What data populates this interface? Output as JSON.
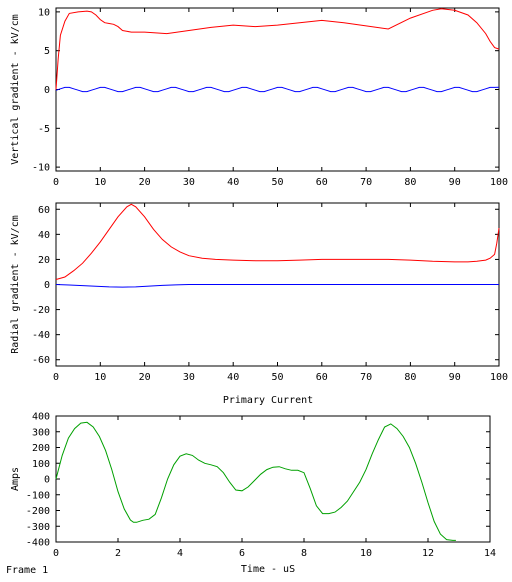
{
  "footer": {
    "frame_label": "Frame 1"
  },
  "chart_data": [
    {
      "type": "line",
      "title": "",
      "xlabel": "",
      "ylabel": "Vertical gradient - kV/cm",
      "xlim": [
        0,
        100
      ],
      "ylim": [
        -10.5,
        10.5
      ],
      "xticks": [
        0,
        10,
        20,
        30,
        40,
        50,
        60,
        70,
        80,
        90,
        100
      ],
      "yticks": [
        -10,
        -5,
        0,
        5,
        10
      ],
      "series": [
        {
          "color": "#ff0000",
          "x": [
            0,
            0.5,
            1,
            2,
            3,
            5,
            7,
            8,
            9,
            10,
            11,
            12,
            13,
            14,
            15,
            17,
            20,
            25,
            30,
            35,
            40,
            45,
            50,
            55,
            60,
            65,
            70,
            75,
            80,
            85,
            87,
            90,
            93,
            95,
            97,
            98,
            99,
            100
          ],
          "y": [
            0,
            4,
            7,
            8.8,
            9.8,
            10,
            10.1,
            10,
            9.6,
            9,
            8.6,
            8.5,
            8.4,
            8.1,
            7.6,
            7.4,
            7.4,
            7.2,
            7.6,
            8,
            8.3,
            8.1,
            8.3,
            8.6,
            8.9,
            8.6,
            8.2,
            7.8,
            9.2,
            10.2,
            10.4,
            10.2,
            9.6,
            8.6,
            7.2,
            6.2,
            5.4,
            5.2
          ]
        },
        {
          "color": "#0000ff",
          "x": [
            0,
            1,
            2,
            3,
            4,
            5,
            6,
            7,
            8,
            9,
            10,
            11,
            12,
            13,
            14,
            15,
            16,
            17,
            18,
            19,
            20,
            21,
            22,
            23,
            24,
            25,
            26,
            27,
            28,
            29,
            30,
            31,
            32,
            33,
            34,
            35,
            36,
            37,
            38,
            39,
            40,
            41,
            42,
            43,
            44,
            45,
            46,
            47,
            48,
            49,
            50,
            51,
            52,
            53,
            54,
            55,
            56,
            57,
            58,
            59,
            60,
            61,
            62,
            63,
            64,
            65,
            66,
            67,
            68,
            69,
            70,
            71,
            72,
            73,
            74,
            75,
            76,
            77,
            78,
            79,
            80,
            81,
            82,
            83,
            84,
            85,
            86,
            87,
            88,
            89,
            90,
            91,
            92,
            93,
            94,
            95,
            96,
            97,
            98,
            99,
            100
          ],
          "y": [
            -0.1,
            0.09,
            0.27,
            0.27,
            0.09,
            -0.09,
            -0.27,
            -0.27,
            -0.09,
            0.09,
            0.27,
            0.27,
            0.09,
            -0.09,
            -0.27,
            -0.27,
            -0.09,
            0.09,
            0.27,
            0.27,
            0.09,
            -0.09,
            -0.27,
            -0.27,
            -0.09,
            0.09,
            0.27,
            0.27,
            0.09,
            -0.09,
            -0.27,
            -0.27,
            -0.09,
            0.09,
            0.27,
            0.27,
            0.09,
            -0.09,
            -0.27,
            -0.27,
            -0.09,
            0.09,
            0.27,
            0.27,
            0.09,
            -0.09,
            -0.27,
            -0.27,
            -0.09,
            0.09,
            0.27,
            0.27,
            0.09,
            -0.09,
            -0.27,
            -0.27,
            -0.09,
            0.09,
            0.27,
            0.27,
            0.09,
            -0.09,
            -0.27,
            -0.27,
            -0.09,
            0.09,
            0.27,
            0.27,
            0.09,
            -0.09,
            -0.27,
            -0.27,
            -0.09,
            0.09,
            0.27,
            0.27,
            0.09,
            -0.09,
            -0.27,
            -0.27,
            -0.09,
            0.09,
            0.27,
            0.27,
            0.09,
            -0.09,
            -0.27,
            -0.27,
            -0.09,
            0.09,
            0.27,
            0.27,
            0.09,
            -0.09,
            -0.27,
            -0.27,
            -0.09,
            0.09,
            0.27,
            0.27,
            0.3
          ]
        }
      ]
    },
    {
      "type": "line",
      "title": "",
      "xlabel": "",
      "ylabel": "Radial gradient - kV/cm",
      "xlim": [
        0,
        100
      ],
      "ylim": [
        -65,
        65
      ],
      "xticks": [
        0,
        10,
        20,
        30,
        40,
        50,
        60,
        70,
        80,
        90,
        100
      ],
      "yticks": [
        -60,
        -40,
        -20,
        0,
        20,
        40,
        60
      ],
      "series": [
        {
          "color": "#ff0000",
          "x": [
            0,
            2,
            4,
            6,
            8,
            10,
            12,
            14,
            16,
            17,
            18,
            20,
            22,
            24,
            26,
            28,
            30,
            33,
            36,
            40,
            45,
            50,
            55,
            60,
            65,
            70,
            75,
            80,
            85,
            90,
            93,
            95,
            97,
            98,
            99,
            99.5,
            100
          ],
          "y": [
            4,
            6,
            11,
            17,
            25,
            34,
            44,
            54,
            62,
            64,
            62,
            54,
            44,
            36,
            30,
            26,
            23,
            21,
            20,
            19.5,
            19,
            19,
            19.5,
            20,
            20,
            20,
            20,
            19.5,
            18.5,
            18,
            18,
            18.5,
            19.5,
            21,
            24,
            33,
            45
          ]
        },
        {
          "color": "#0000ff",
          "x": [
            0,
            3,
            6,
            9,
            12,
            15,
            18,
            21,
            24,
            27,
            30,
            40,
            50,
            60,
            70,
            80,
            90,
            100
          ],
          "y": [
            0,
            -0.4,
            -0.9,
            -1.4,
            -1.9,
            -2.1,
            -1.9,
            -1.3,
            -0.7,
            -0.3,
            0,
            0,
            0,
            0,
            0,
            0,
            0,
            0
          ]
        }
      ]
    },
    {
      "type": "line",
      "title": "Primary Current",
      "xlabel": "Time - uS",
      "ylabel": "Amps",
      "xlim": [
        0,
        14
      ],
      "ylim": [
        -400,
        400
      ],
      "xticks": [
        0,
        2,
        4,
        6,
        8,
        10,
        12,
        14
      ],
      "yticks": [
        -400,
        -300,
        -200,
        -100,
        0,
        100,
        200,
        300,
        400
      ],
      "series": [
        {
          "color": "#00a000",
          "x": [
            0,
            0.2,
            0.4,
            0.6,
            0.8,
            1.0,
            1.2,
            1.4,
            1.6,
            1.8,
            2.0,
            2.2,
            2.4,
            2.5,
            2.6,
            2.8,
            3.0,
            3.2,
            3.4,
            3.6,
            3.8,
            4.0,
            4.2,
            4.4,
            4.6,
            4.8,
            5.0,
            5.2,
            5.4,
            5.6,
            5.8,
            6.0,
            6.2,
            6.4,
            6.6,
            6.8,
            7.0,
            7.2,
            7.4,
            7.6,
            7.8,
            8.0,
            8.2,
            8.4,
            8.6,
            8.8,
            9.0,
            9.2,
            9.4,
            9.6,
            9.8,
            10.0,
            10.2,
            10.4,
            10.6,
            10.8,
            11.0,
            11.2,
            11.4,
            11.6,
            11.8,
            12.0,
            12.2,
            12.4,
            12.6,
            12.8,
            12.9
          ],
          "y": [
            0,
            150,
            260,
            320,
            355,
            360,
            330,
            270,
            180,
            60,
            -80,
            -190,
            -260,
            -275,
            -275,
            -262,
            -255,
            -225,
            -120,
            0,
            90,
            145,
            160,
            150,
            120,
            100,
            90,
            78,
            40,
            -20,
            -70,
            -75,
            -50,
            -10,
            30,
            60,
            75,
            78,
            65,
            55,
            55,
            40,
            -60,
            -170,
            -220,
            -220,
            -210,
            -180,
            -140,
            -80,
            -20,
            60,
            160,
            250,
            330,
            350,
            320,
            270,
            200,
            100,
            -20,
            -150,
            -270,
            -350,
            -385,
            -390,
            -390
          ]
        }
      ]
    }
  ]
}
